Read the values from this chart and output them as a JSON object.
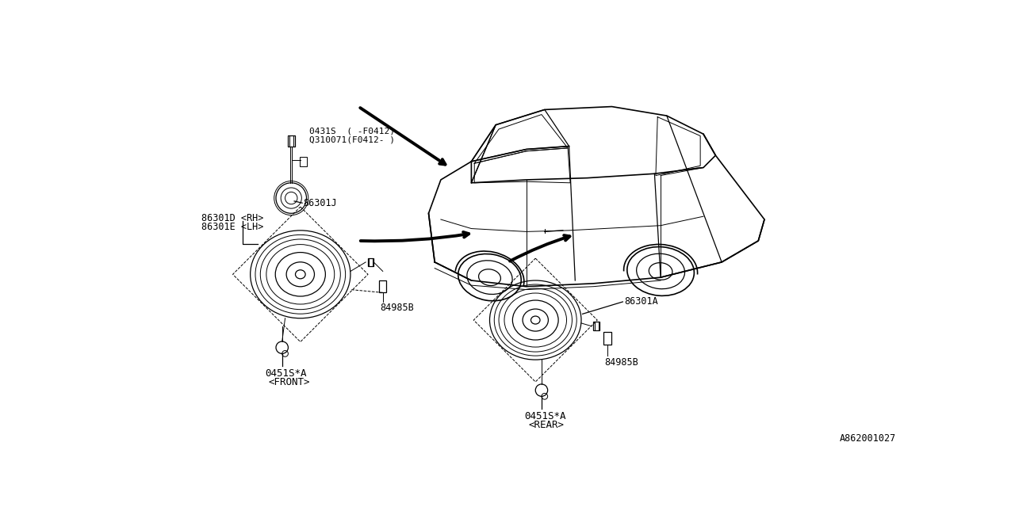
{
  "bg_color": "#ffffff",
  "line_color": "#000000",
  "diagram_id": "A862001027",
  "font": "monospace",
  "labels": {
    "tweeter_part1": "0431S  ( -F0412)",
    "tweeter_part2": "Q310071(F0412- )",
    "tweeter_ref": "86301J",
    "front_speaker_part1": "86301D <RH>",
    "front_speaker_part2": "86301E <LH>",
    "front_bracket": "84985B",
    "front_wire": "0451S*A",
    "front_label": "<FRONT>",
    "rear_speaker_ref": "86301A",
    "rear_bracket": "84985B",
    "rear_wire": "0451S*A",
    "rear_label": "<REAR>"
  }
}
